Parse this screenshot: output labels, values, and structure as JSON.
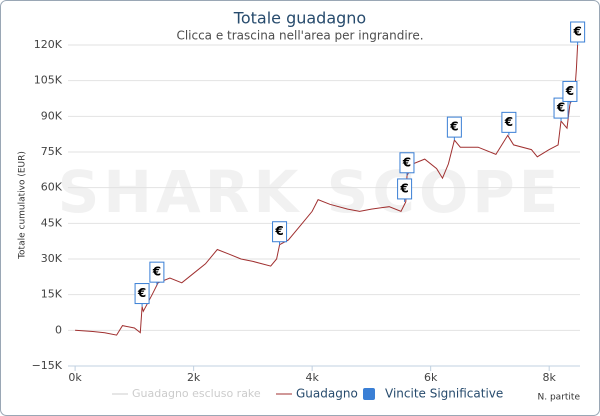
{
  "chart_data": {
    "type": "line",
    "title": "Totale guadagno",
    "subtitle": "Clicca e trascina nell'area per ingrandire.",
    "watermark": "SHARK SCOPE",
    "y_label": "Totale cumulativo (EUR)",
    "x_label": "N. partite",
    "xlim": [
      -120,
      8520
    ],
    "xticks": [
      {
        "value": 0,
        "label": "0k"
      },
      {
        "value": 2000,
        "label": "2k"
      },
      {
        "value": 4000,
        "label": "4k"
      },
      {
        "value": 6000,
        "label": "6k"
      },
      {
        "value": 8000,
        "label": "8k"
      }
    ],
    "ylim": [
      -15000,
      120000
    ],
    "yticks": [
      {
        "value": -15000,
        "label": "−15K"
      },
      0,
      {
        "value": 15000,
        "label": "15K"
      },
      {
        "value": 30000,
        "label": "30K"
      },
      {
        "value": 45000,
        "label": "45K"
      },
      {
        "value": 60000,
        "label": "60K"
      },
      {
        "value": 75000,
        "label": "75K"
      },
      {
        "value": 90000,
        "label": "90K"
      },
      {
        "value": 105000,
        "label": "105K"
      },
      {
        "value": 120000,
        "label": "120K"
      }
    ],
    "grid": true,
    "series": [
      {
        "name": "Guadagno escluso rake",
        "color": "#cccccc"
      },
      {
        "name": "Guadagno",
        "color": "#a03030",
        "x": [
          0,
          300,
          500,
          700,
          800,
          1000,
          1100,
          1130,
          1150,
          1300,
          1400,
          1600,
          1800,
          2000,
          2200,
          2400,
          2600,
          2800,
          3000,
          3300,
          3400,
          3450,
          3600,
          3800,
          4000,
          4100,
          4300,
          4600,
          4800,
          5000,
          5300,
          5500,
          5580,
          5600,
          5700,
          5900,
          6100,
          6200,
          6300,
          6400,
          6500,
          6800,
          7100,
          7300,
          7400,
          7700,
          7800,
          8000,
          8150,
          8200,
          8300,
          8350,
          8430,
          8460,
          8480
        ],
        "values": [
          0,
          -500,
          -1000,
          -2000,
          2000,
          1000,
          -1000,
          10000,
          8000,
          15000,
          20000,
          22000,
          20000,
          24000,
          28000,
          34000,
          32000,
          30000,
          29000,
          27000,
          30000,
          36000,
          38000,
          44000,
          50000,
          55000,
          53000,
          51000,
          50000,
          51000,
          52000,
          50000,
          54000,
          65000,
          70000,
          72000,
          68000,
          64000,
          70000,
          80000,
          77000,
          77000,
          74000,
          82000,
          78000,
          76000,
          73000,
          76000,
          78000,
          88000,
          85000,
          95000,
          100000,
          110000,
          120000
        ]
      },
      {
        "name": "Vincite Significative",
        "color": "#3a7fd5",
        "flag_label": "€",
        "x": [
          1130,
          1380,
          3450,
          5560,
          5600,
          6400,
          7320,
          8200,
          8350,
          8480
        ],
        "values": [
          10000,
          19000,
          36000,
          54000,
          65000,
          80000,
          82000,
          88000,
          95000,
          120000
        ]
      }
    ]
  }
}
